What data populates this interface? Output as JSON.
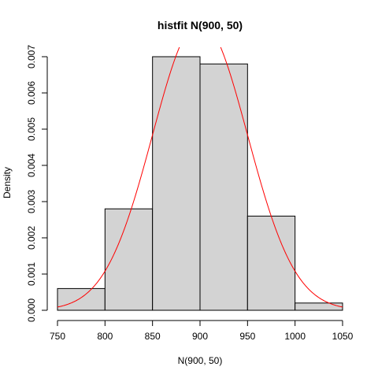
{
  "chart_data": {
    "type": "bar",
    "title": "histfit N(900, 50)",
    "xlabel": "N(900, 50)",
    "ylabel": "Density",
    "bins": [
      {
        "start": 750,
        "end": 800,
        "density": 0.0006
      },
      {
        "start": 800,
        "end": 850,
        "density": 0.0028
      },
      {
        "start": 850,
        "end": 900,
        "density": 0.007
      },
      {
        "start": 900,
        "end": 950,
        "density": 0.0068
      },
      {
        "start": 950,
        "end": 1000,
        "density": 0.0026
      },
      {
        "start": 1000,
        "end": 1050,
        "density": 0.0002
      }
    ],
    "fit_curve": {
      "type": "normal",
      "mean": 900,
      "sd": 50,
      "x_range": [
        750,
        1050
      ]
    },
    "xlim": [
      750,
      1050
    ],
    "ylim": [
      0,
      0.007
    ],
    "xticks": [
      750,
      800,
      850,
      900,
      950,
      1000,
      1050
    ],
    "xtick_labels": [
      "750",
      "800",
      "850",
      "900",
      "950",
      "1000",
      "1050"
    ],
    "yticks": [
      0.0,
      0.001,
      0.002,
      0.003,
      0.004,
      0.005,
      0.006,
      0.007
    ],
    "ytick_labels": [
      "0.000",
      "0.001",
      "0.002",
      "0.003",
      "0.004",
      "0.005",
      "0.006",
      "0.007"
    ],
    "colors": {
      "bar_fill": "#d3d3d3",
      "bar_stroke": "#000000",
      "curve": "#ff0000"
    }
  }
}
